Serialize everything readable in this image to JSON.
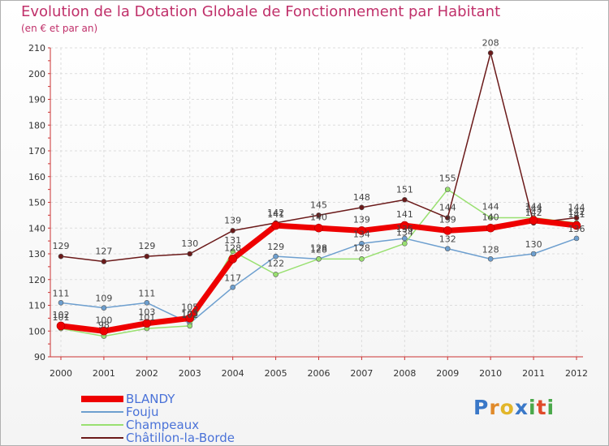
{
  "title": "Evolution de la Dotation Globale de Fonctionnement par Habitant",
  "subtitle": "(en € et par an)",
  "logo": {
    "text": "Proxiti",
    "letters": [
      "P",
      "r",
      "o",
      "x",
      "i",
      "t",
      "i"
    ],
    "colors": [
      "#3a78c8",
      "#e08a2a",
      "#e2b62a",
      "#3a78c8",
      "#4aa84a",
      "#e04a2a",
      "#4aa84a"
    ]
  },
  "chart_data": {
    "type": "line",
    "x": [
      "2000",
      "2001",
      "2002",
      "2003",
      "2004",
      "2005",
      "2006",
      "2007",
      "2008",
      "2009",
      "2010",
      "2011",
      "2012"
    ],
    "ylim": [
      90,
      210
    ],
    "yticks": [
      90,
      100,
      110,
      120,
      130,
      140,
      150,
      160,
      170,
      180,
      190,
      200,
      210
    ],
    "grid": true,
    "legend_position": "bottom-left",
    "series": [
      {
        "name": "BLANDY",
        "color": "#ee0000",
        "values": [
          102,
          100,
          103,
          105,
          128,
          141,
          140,
          139,
          141,
          139,
          140,
          143,
          141
        ],
        "labels": [
          "102",
          "100",
          "103",
          "105",
          "128",
          "141",
          "140",
          "139",
          "141",
          "139",
          "140",
          "143",
          "141"
        ]
      },
      {
        "name": "Fouju",
        "color": "#6d9fcf",
        "values": [
          111,
          109,
          111,
          103,
          117,
          129,
          128,
          134,
          136,
          132,
          128,
          130,
          136
        ],
        "labels": [
          "111",
          "109",
          "111",
          "103",
          "117",
          "129",
          "128",
          "134",
          "136",
          "132",
          "128",
          "130",
          "136"
        ]
      },
      {
        "name": "Champeaux",
        "color": "#99e070",
        "values": [
          101,
          98,
          101,
          102,
          131,
          122,
          128,
          128,
          134,
          155,
          144,
          144,
          142
        ],
        "labels": [
          "101",
          "98",
          "101",
          "102",
          "131",
          "122",
          "128",
          "128",
          "134",
          "155",
          "144",
          "144",
          "142"
        ]
      },
      {
        "name": "Châtillon-la-Borde",
        "color": "#6b1a1a",
        "values": [
          129,
          127,
          129,
          130,
          139,
          142,
          145,
          148,
          151,
          144,
          208,
          142,
          144
        ],
        "labels": [
          "129",
          "127",
          "129",
          "130",
          "139",
          "142",
          "145",
          "148",
          "151",
          "144",
          "208",
          "142",
          "144"
        ]
      }
    ]
  }
}
